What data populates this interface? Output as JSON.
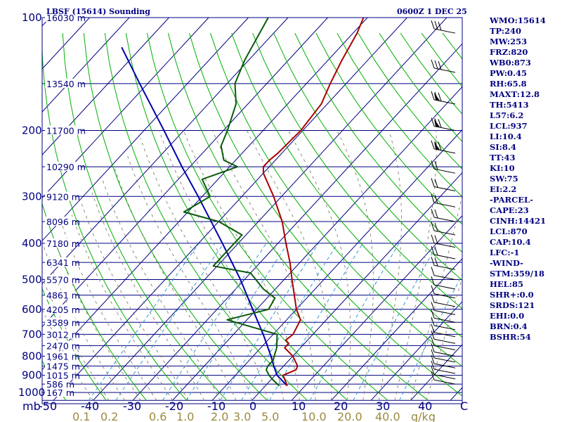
{
  "header": {
    "station": "LBSF (15614) Sounding",
    "time": "0600Z  1 DEC 25"
  },
  "chart_data": {
    "type": "line",
    "title": "LBSF (15614) Sounding",
    "chart_kind": "skew-T log-P",
    "pressure_ticks": [
      "100",
      "200",
      "300",
      "400",
      "500",
      "600",
      "700",
      "800",
      "900",
      "1000"
    ],
    "pressure_unit": "mb",
    "height_labels": [
      {
        "p": 100,
        "label": "16030 m"
      },
      {
        "p": 150,
        "label": "13540 m"
      },
      {
        "p": 200,
        "label": "11700 m"
      },
      {
        "p": 250,
        "label": "10290 m"
      },
      {
        "p": 300,
        "label": "9120 m"
      },
      {
        "p": 350,
        "label": "8096 m"
      },
      {
        "p": 400,
        "label": "7180 m"
      },
      {
        "p": 450,
        "label": "6341 m"
      },
      {
        "p": 500,
        "label": "5570 m"
      },
      {
        "p": 550,
        "label": "4861 m"
      },
      {
        "p": 600,
        "label": "4205 m"
      },
      {
        "p": 650,
        "label": "3589 m"
      },
      {
        "p": 700,
        "label": "3012 m"
      },
      {
        "p": 750,
        "label": "2470 m"
      },
      {
        "p": 800,
        "label": "1961 m"
      },
      {
        "p": 850,
        "label": "1475 m"
      },
      {
        "p": 900,
        "label": "1015 m"
      },
      {
        "p": 950,
        "label": "586 m"
      },
      {
        "p": 1000,
        "label": "167 m"
      }
    ],
    "temp_ticks": [
      "-50",
      "-40",
      "-30",
      "-20",
      "-10",
      "0",
      "10",
      "20",
      "30",
      "40",
      "C"
    ],
    "mixing_ratio_ticks": [
      "0.1",
      "0.2",
      "0.6",
      "1.0",
      "2.0",
      "3.0",
      "5.0",
      "10.0",
      "20.0",
      "40.0",
      "g/kg"
    ],
    "temperature_profile": [
      {
        "p": 960,
        "t": 5.5
      },
      {
        "p": 925,
        "t": 3.5
      },
      {
        "p": 900,
        "t": 2.0
      },
      {
        "p": 870,
        "t": 4.0
      },
      {
        "p": 850,
        "t": 3.5
      },
      {
        "p": 800,
        "t": 0.0
      },
      {
        "p": 760,
        "t": -4.0
      },
      {
        "p": 740,
        "t": -4.0
      },
      {
        "p": 725,
        "t": -5.5
      },
      {
        "p": 700,
        "t": -5.0
      },
      {
        "p": 640,
        "t": -6.5
      },
      {
        "p": 600,
        "t": -10.0
      },
      {
        "p": 500,
        "t": -18.0
      },
      {
        "p": 450,
        "t": -22.5
      },
      {
        "p": 400,
        "t": -28.0
      },
      {
        "p": 350,
        "t": -34.0
      },
      {
        "p": 300,
        "t": -42.0
      },
      {
        "p": 260,
        "t": -50.0
      },
      {
        "p": 250,
        "t": -51.5
      },
      {
        "p": 240,
        "t": -51.5
      },
      {
        "p": 230,
        "t": -51.0
      },
      {
        "p": 200,
        "t": -50.5
      },
      {
        "p": 170,
        "t": -51.5
      },
      {
        "p": 150,
        "t": -54.0
      },
      {
        "p": 130,
        "t": -56.5
      },
      {
        "p": 110,
        "t": -59.0
      },
      {
        "p": 100,
        "t": -61.0
      }
    ],
    "dewpoint_profile": [
      {
        "p": 960,
        "t": 3.5
      },
      {
        "p": 925,
        "t": 0.5
      },
      {
        "p": 900,
        "t": -1.5
      },
      {
        "p": 870,
        "t": -3.5
      },
      {
        "p": 850,
        "t": -4.0
      },
      {
        "p": 820,
        "t": -4.0
      },
      {
        "p": 790,
        "t": -5.0
      },
      {
        "p": 760,
        "t": -6.0
      },
      {
        "p": 700,
        "t": -9.0
      },
      {
        "p": 640,
        "t": -25.0
      },
      {
        "p": 600,
        "t": -17.0
      },
      {
        "p": 560,
        "t": -18.0
      },
      {
        "p": 530,
        "t": -23.0
      },
      {
        "p": 480,
        "t": -30.0
      },
      {
        "p": 460,
        "t": -41.0
      },
      {
        "p": 420,
        "t": -41.0
      },
      {
        "p": 380,
        "t": -41.0
      },
      {
        "p": 350,
        "t": -50.0
      },
      {
        "p": 330,
        "t": -61.0
      },
      {
        "p": 300,
        "t": -58.0
      },
      {
        "p": 270,
        "t": -64.0
      },
      {
        "p": 250,
        "t": -58.0
      },
      {
        "p": 240,
        "t": -63.0
      },
      {
        "p": 220,
        "t": -67.0
      },
      {
        "p": 200,
        "t": -69.0
      },
      {
        "p": 170,
        "t": -73.0
      },
      {
        "p": 150,
        "t": -78.0
      },
      {
        "p": 130,
        "t": -81.0
      },
      {
        "p": 100,
        "t": -85.0
      }
    ],
    "parcel_profile": [
      {
        "p": 960,
        "t": 5.5
      },
      {
        "p": 900,
        "t": 0.5
      },
      {
        "p": 850,
        "t": -2.5
      },
      {
        "p": 800,
        "t": -5.5
      },
      {
        "p": 700,
        "t": -12.5
      },
      {
        "p": 600,
        "t": -21.0
      },
      {
        "p": 500,
        "t": -31.0
      },
      {
        "p": 400,
        "t": -44.0
      },
      {
        "p": 300,
        "t": -61.0
      },
      {
        "p": 250,
        "t": -72.0
      },
      {
        "p": 200,
        "t": -85.0
      },
      {
        "p": 150,
        "t": -102.0
      },
      {
        "p": 120,
        "t": -115.0
      }
    ],
    "colors": {
      "temperature": "#aa0000",
      "dewpoint": "#0a5a0a",
      "parcel": "#0000b0",
      "isobar": "#000080",
      "isotherm": "#000080",
      "dry_adiabat": "#00b000",
      "moist_adiabat": "#808070",
      "mixing_ratio": "#3399cc",
      "text": "#000080",
      "tick_mixing": "#9a8a40"
    }
  },
  "sidebar": {
    "lines": [
      "WMO:15614",
      "TP:240",
      "MW:253",
      "FRZ:820",
      "WB0:873",
      "PW:0.45",
      "RH:65.8",
      "MAXT:12.8",
      "TH:5413",
      "L57:6.2",
      "LCL:937",
      "LI:10.4",
      "SI:8.4",
      "TT:43",
      "KI:10",
      "SW:75",
      "EI:2.2",
      "-PARCEL-",
      "CAPE:23",
      "CINH:14421",
      "LCL:870",
      "CAP:10.4",
      "LFC:-1",
      "-WIND-",
      "STM:359/18",
      "HEL:85",
      "SHR+:0.0",
      "SRDS:121",
      "EHI:0.0",
      "BRN:0.4",
      "BSHR:54"
    ]
  }
}
